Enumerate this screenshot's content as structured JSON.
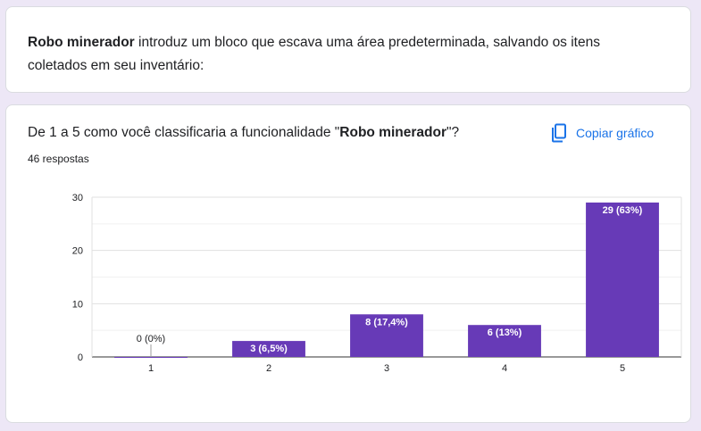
{
  "intro": {
    "bold": "Robo minerador",
    "text": " introduz um bloco que escava uma área predeterminada, salvando os itens coletados em seu inventário:"
  },
  "question": {
    "prefix": "De 1 a 5 como você classificaria a funcionalidade \"",
    "bold": "Robo minerador",
    "suffix": "\"?",
    "responses": "46 respostas"
  },
  "copy_button": {
    "label": "Copiar gráfico",
    "icon": "copy-icon"
  },
  "colors": {
    "bar": "#673ab7",
    "accent": "#1a73e8",
    "background": "#ede7f6"
  },
  "chart_data": {
    "type": "bar",
    "categories": [
      "1",
      "2",
      "3",
      "4",
      "5"
    ],
    "values": [
      0,
      3,
      8,
      6,
      29
    ],
    "data_labels": [
      "0 (0%)",
      "3 (6,5%)",
      "8 (17,4%)",
      "6 (13%)",
      "29 (63%)"
    ],
    "yticks": [
      0,
      10,
      20,
      30
    ],
    "ylim": [
      0,
      30
    ],
    "grid": true,
    "xlabel": "",
    "ylabel": ""
  }
}
